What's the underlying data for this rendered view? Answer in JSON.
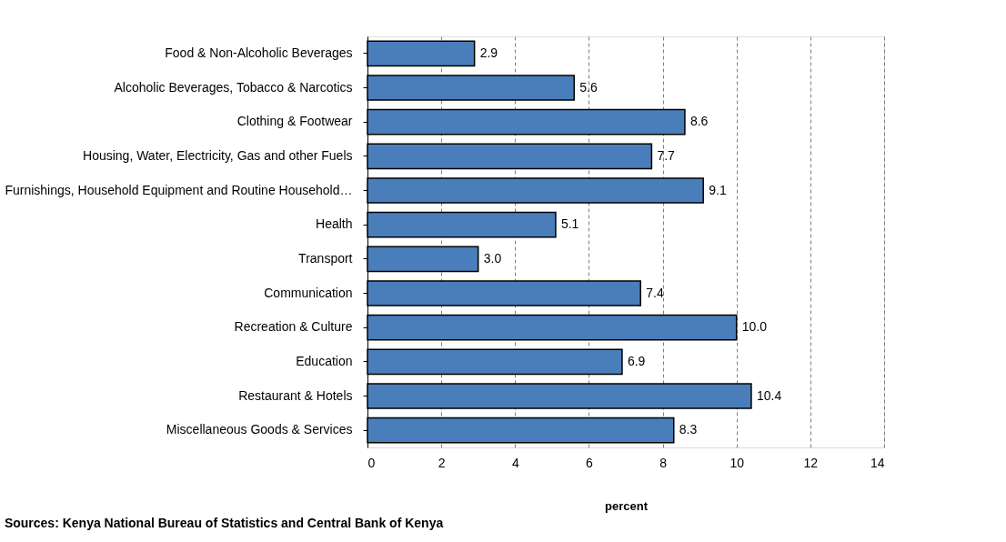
{
  "chart_data": {
    "type": "bar",
    "orientation": "horizontal",
    "categories": [
      "Food & Non-Alcoholic Beverages",
      "Alcoholic Beverages, Tobacco & Narcotics",
      "Clothing & Footwear",
      "Housing, Water, Electricity, Gas and other Fuels",
      "Furnishings, Household Equipment and Routine Household…",
      "Health",
      "Transport",
      "Communication",
      "Recreation & Culture",
      "Education",
      "Restaurant & Hotels",
      "Miscellaneous Goods & Services"
    ],
    "values": [
      2.9,
      5.6,
      8.6,
      7.7,
      9.1,
      5.1,
      3.0,
      7.4,
      10.0,
      6.9,
      10.4,
      8.3
    ],
    "value_labels": [
      "2.9",
      "5.6",
      "8.6",
      "7.7",
      "9.1",
      "5.1",
      "3.0",
      "7.4",
      "10.0",
      "6.9",
      "10.4",
      "8.3"
    ],
    "color": "#4a7ebb",
    "xlim": [
      0,
      14
    ],
    "xticks": [
      0,
      2,
      4,
      6,
      8,
      10,
      12,
      14
    ],
    "xlabel": "percent",
    "grid": "x",
    "annotations": [
      "Sources: Kenya National Bureau of Statistics and Central Bank of Kenya"
    ]
  }
}
